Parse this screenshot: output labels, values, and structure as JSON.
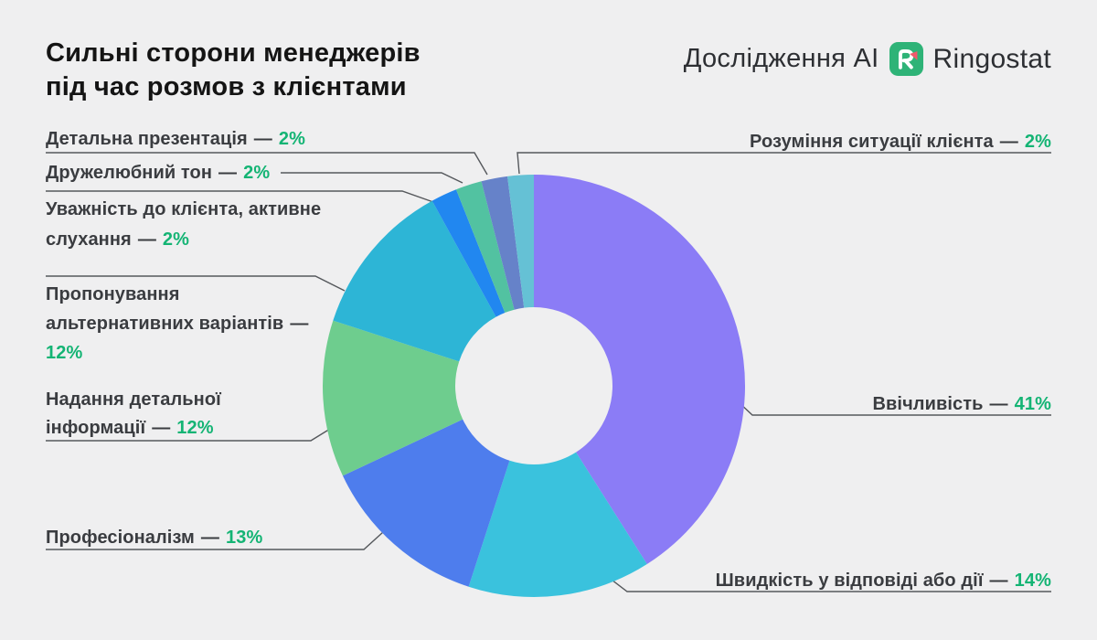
{
  "title": {
    "line1": "Сильні сторони менеджерів",
    "line2": "під час розмов з клієнтами"
  },
  "header": {
    "research_label": "Дослідження AI",
    "brand": "Ringostat"
  },
  "separator": "—",
  "colors": {
    "background": "#efeff0",
    "label_text": "#3a3c40",
    "percent_green": "#14b474",
    "leader_line": "#55585c",
    "logo_green": "#2eb377",
    "logo_coral": "#f0596c"
  },
  "chart_data": {
    "type": "pie",
    "subtype": "donut",
    "unit": "%",
    "direction": "clockwise",
    "start_angle_deg": 0,
    "legend_position": "callout-labels",
    "segments": [
      {
        "label": "Ввічливість",
        "value": 41,
        "pct": "41%",
        "color": "#8b7cf6"
      },
      {
        "label": "Швидкість у відповіді або дії",
        "value": 14,
        "pct": "14%",
        "color": "#3ac2dd"
      },
      {
        "label": "Професіоналізм",
        "value": 13,
        "pct": "13%",
        "color": "#4e7ded"
      },
      {
        "label": "Надання детальної інформації",
        "value": 12,
        "pct": "12%",
        "color": "#6ecd8e"
      },
      {
        "label": "Пропонування альтернативних варіантів",
        "value": 12,
        "pct": "12%",
        "color": "#2db5d6"
      },
      {
        "label": "Уважність до клієнта, активне слухання",
        "value": 2,
        "pct": "2%",
        "color": "#2187f0"
      },
      {
        "label": "Дружелюбний тон",
        "value": 2,
        "pct": "2%",
        "color": "#52c2a1"
      },
      {
        "label": "Детальна презентація",
        "value": 2,
        "pct": "2%",
        "color": "#6682c9"
      },
      {
        "label": "Розуміння ситуації клієнта",
        "value": 2,
        "pct": "2%",
        "color": "#65c1d5"
      }
    ]
  }
}
